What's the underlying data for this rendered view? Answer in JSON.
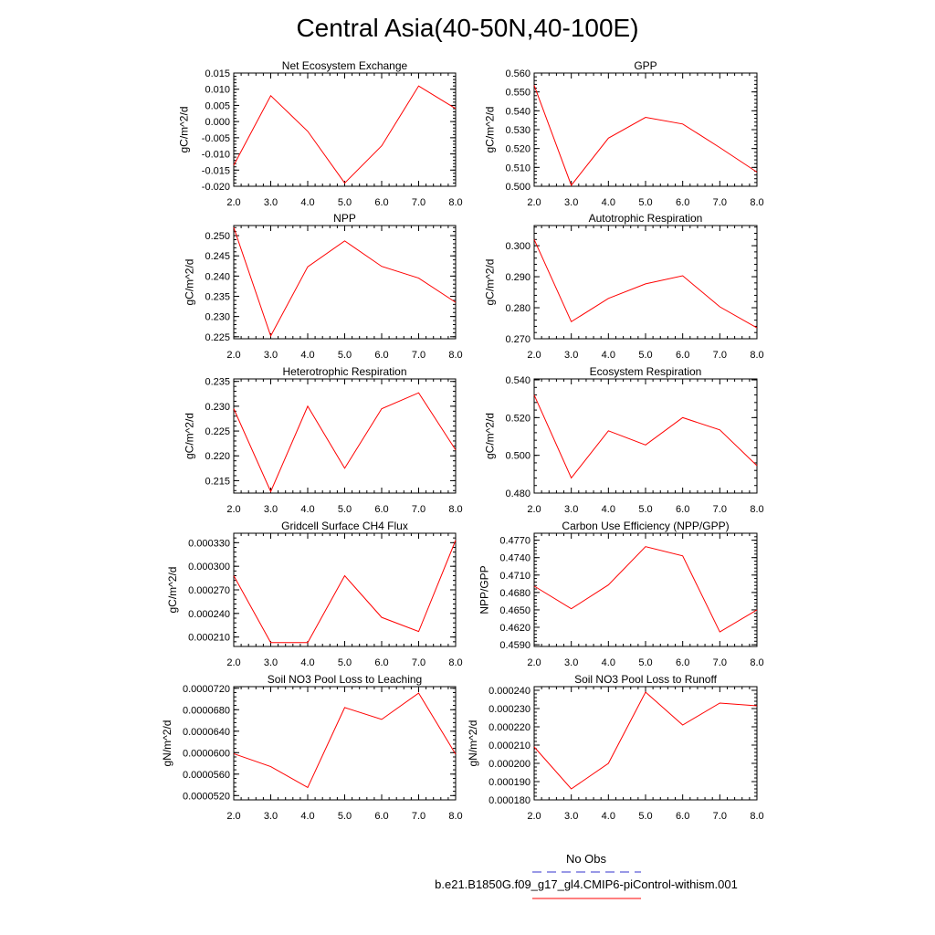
{
  "figure": {
    "title": "Central Asia(40-50N,40-100E)"
  },
  "colors": {
    "model_line": "#ff0000",
    "obs_line": "#3333cc"
  },
  "legend": {
    "entries": [
      {
        "label": "No Obs",
        "style": "dashed",
        "color": "#3333cc"
      },
      {
        "label": "b.e21.B1850G.f09_g17_gl4.CMIP6-piControl-withism.001",
        "style": "solid",
        "color": "#ff0000"
      }
    ]
  },
  "chart_data": [
    {
      "type": "line",
      "title": "Net Ecosystem Exchange",
      "xlabel": "",
      "ylabel": "gC/m^2/d",
      "x": [
        2,
        3,
        4,
        5,
        6,
        7,
        8
      ],
      "xlim": [
        2,
        8
      ],
      "xticks": [
        "2.0",
        "3.0",
        "4.0",
        "5.0",
        "6.0",
        "7.0",
        "8.0"
      ],
      "ylim": [
        -0.02,
        0.015
      ],
      "yticks": [
        "0.015",
        "0.010",
        "0.005",
        "0.000",
        "-0.005",
        "-0.010",
        "-0.015",
        "-0.020"
      ],
      "ytick_values": [
        0.015,
        0.01,
        0.005,
        0.0,
        -0.005,
        -0.01,
        -0.015,
        -0.02
      ],
      "series": [
        {
          "values": [
            -0.0135,
            0.008,
            -0.003,
            -0.019,
            -0.0075,
            0.011,
            0.004
          ]
        }
      ]
    },
    {
      "type": "line",
      "title": "GPP",
      "xlabel": "",
      "ylabel": "gC/m^2/d",
      "x": [
        2,
        3,
        4,
        5,
        6,
        7,
        8
      ],
      "xlim": [
        2,
        8
      ],
      "xticks": [
        "2.0",
        "3.0",
        "4.0",
        "5.0",
        "6.0",
        "7.0",
        "8.0"
      ],
      "ylim": [
        0.5,
        0.56
      ],
      "yticks": [
        "0.560",
        "0.550",
        "0.540",
        "0.530",
        "0.520",
        "0.510",
        "0.500"
      ],
      "ytick_values": [
        0.56,
        0.55,
        0.54,
        0.53,
        0.52,
        0.51,
        0.5
      ],
      "series": [
        {
          "values": [
            0.5535,
            0.5005,
            0.5255,
            0.5365,
            0.533,
            0.5205,
            0.5075
          ]
        }
      ]
    },
    {
      "type": "line",
      "title": "NPP",
      "xlabel": "",
      "ylabel": "gC/m^2/d",
      "x": [
        2,
        3,
        4,
        5,
        6,
        7,
        8
      ],
      "xlim": [
        2,
        8
      ],
      "xticks": [
        "2.0",
        "3.0",
        "4.0",
        "5.0",
        "6.0",
        "7.0",
        "8.0"
      ],
      "ylim": [
        0.2245,
        0.2525
      ],
      "yticks": [
        "0.250",
        "0.245",
        "0.240",
        "0.235",
        "0.230",
        "0.225"
      ],
      "ytick_values": [
        0.25,
        0.245,
        0.24,
        0.235,
        0.23,
        0.225
      ],
      "series": [
        {
          "values": [
            0.252,
            0.2252,
            0.2423,
            0.2487,
            0.2424,
            0.2395,
            0.2335
          ]
        }
      ]
    },
    {
      "type": "line",
      "title": "Autotrophic Respiration",
      "xlabel": "",
      "ylabel": "gC/m^2/d",
      "x": [
        2,
        3,
        4,
        5,
        6,
        7,
        8
      ],
      "xlim": [
        2,
        8
      ],
      "xticks": [
        "2.0",
        "3.0",
        "4.0",
        "5.0",
        "6.0",
        "7.0",
        "8.0"
      ],
      "ylim": [
        0.27,
        0.3065
      ],
      "yticks": [
        "0.300",
        "0.290",
        "0.280",
        "0.270"
      ],
      "ytick_values": [
        0.3,
        0.29,
        0.28,
        0.27
      ],
      "series": [
        {
          "values": [
            0.302,
            0.2755,
            0.283,
            0.2877,
            0.2903,
            0.2803,
            0.2735
          ]
        }
      ]
    },
    {
      "type": "line",
      "title": "Heterotrophic Respiration",
      "xlabel": "",
      "ylabel": "gC/m^2/d",
      "x": [
        2,
        3,
        4,
        5,
        6,
        7,
        8
      ],
      "xlim": [
        2,
        8
      ],
      "xticks": [
        "2.0",
        "3.0",
        "4.0",
        "5.0",
        "6.0",
        "7.0",
        "8.0"
      ],
      "ylim": [
        0.2125,
        0.2355
      ],
      "yticks": [
        "0.235",
        "0.230",
        "0.225",
        "0.220",
        "0.215"
      ],
      "ytick_values": [
        0.235,
        0.23,
        0.225,
        0.22,
        0.215
      ],
      "series": [
        {
          "values": [
            0.2295,
            0.2128,
            0.23,
            0.2175,
            0.2295,
            0.2327,
            0.2212
          ]
        }
      ]
    },
    {
      "type": "line",
      "title": "Ecosystem Respiration",
      "xlabel": "",
      "ylabel": "gC/m^2/d",
      "x": [
        2,
        3,
        4,
        5,
        6,
        7,
        8
      ],
      "xlim": [
        2,
        8
      ],
      "xticks": [
        "2.0",
        "3.0",
        "4.0",
        "5.0",
        "6.0",
        "7.0",
        "8.0"
      ],
      "ylim": [
        0.48,
        0.5405
      ],
      "yticks": [
        "0.540",
        "0.520",
        "0.500",
        "0.480"
      ],
      "ytick_values": [
        0.54,
        0.52,
        0.5,
        0.48
      ],
      "series": [
        {
          "values": [
            0.532,
            0.488,
            0.513,
            0.5055,
            0.52,
            0.5135,
            0.4945
          ]
        }
      ]
    },
    {
      "type": "line",
      "title": "Gridcell Surface CH4 Flux",
      "xlabel": "",
      "ylabel": "gC/m^2/d",
      "x": [
        2,
        3,
        4,
        5,
        6,
        7,
        8
      ],
      "xlim": [
        2,
        8
      ],
      "xticks": [
        "2.0",
        "3.0",
        "4.0",
        "5.0",
        "6.0",
        "7.0",
        "8.0"
      ],
      "ylim": [
        0.000198,
        0.000342
      ],
      "yticks": [
        "0.000330",
        "0.000300",
        "0.000270",
        "0.000240",
        "0.000210"
      ],
      "ytick_values": [
        0.00033,
        0.0003,
        0.00027,
        0.00024,
        0.00021
      ],
      "series": [
        {
          "values": [
            0.000288,
            0.000203,
            0.000203,
            0.000288,
            0.000235,
            0.000217,
            0.000333
          ]
        }
      ]
    },
    {
      "type": "line",
      "title": "Carbon Use Efficiency (NPP/GPP)",
      "xlabel": "",
      "ylabel": "NPP/GPP",
      "x": [
        2,
        3,
        4,
        5,
        6,
        7,
        8
      ],
      "xlim": [
        2,
        8
      ],
      "xticks": [
        "2.0",
        "3.0",
        "4.0",
        "5.0",
        "6.0",
        "7.0",
        "8.0"
      ],
      "ylim": [
        0.4587,
        0.4782
      ],
      "yticks": [
        "0.4770",
        "0.4740",
        "0.4710",
        "0.4680",
        "0.4650",
        "0.4620",
        "0.4590"
      ],
      "ytick_values": [
        0.477,
        0.474,
        0.471,
        0.468,
        0.465,
        0.462,
        0.459
      ],
      "series": [
        {
          "values": [
            0.4691,
            0.4652,
            0.4693,
            0.4759,
            0.4743,
            0.4612,
            0.465
          ]
        }
      ]
    },
    {
      "type": "line",
      "title": "Soil NO3 Pool Loss to Leaching",
      "xlabel": "",
      "ylabel": "gN/m^2/d",
      "x": [
        2,
        3,
        4,
        5,
        6,
        7,
        8
      ],
      "xlim": [
        2,
        8
      ],
      "xticks": [
        "2.0",
        "3.0",
        "4.0",
        "5.0",
        "6.0",
        "7.0",
        "8.0"
      ],
      "ylim": [
        5.12e-05,
        7.23e-05
      ],
      "yticks": [
        "0.0000720",
        "0.0000680",
        "0.0000640",
        "0.0000600",
        "0.0000560",
        "0.0000520"
      ],
      "ytick_values": [
        7.2e-05,
        6.8e-05,
        6.4e-05,
        6e-05,
        5.6e-05,
        5.2e-05
      ],
      "series": [
        {
          "values": [
            5.98e-05,
            5.74e-05,
            5.35e-05,
            6.84e-05,
            6.62e-05,
            7.11e-05,
            5.97e-05
          ]
        }
      ]
    },
    {
      "type": "line",
      "title": "Soil NO3 Pool Loss to Runoff",
      "xlabel": "",
      "ylabel": "gN/m^2/d",
      "x": [
        2,
        3,
        4,
        5,
        6,
        7,
        8
      ],
      "xlim": [
        2,
        8
      ],
      "xticks": [
        "2.0",
        "3.0",
        "4.0",
        "5.0",
        "6.0",
        "7.0",
        "8.0"
      ],
      "ylim": [
        0.00018,
        0.000242
      ],
      "yticks": [
        "0.000240",
        "0.000230",
        "0.000220",
        "0.000210",
        "0.000200",
        "0.000190",
        "0.000180"
      ],
      "ytick_values": [
        0.00024,
        0.00023,
        0.00022,
        0.00021,
        0.0002,
        0.00019,
        0.00018
      ],
      "series": [
        {
          "values": [
            0.000209,
            0.000186,
            0.0002,
            0.000239,
            0.000221,
            0.000233,
            0.0002315
          ]
        }
      ]
    }
  ]
}
